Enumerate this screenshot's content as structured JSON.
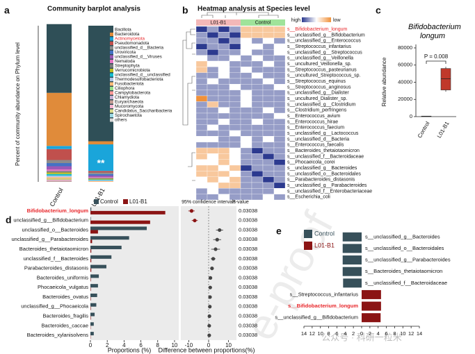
{
  "watermarks": [
    "e-proof",
    "公众号 · 科研一粒米"
  ],
  "chart_data": [
    {
      "type": "stacked_bar",
      "panel": "a",
      "title": "Community barplot analysis",
      "ylabel": "Percent of community abundance on Phylum level",
      "categories": [
        "Control",
        "L01-B1"
      ],
      "ylim": [
        0,
        100
      ],
      "annotation": "**",
      "highlight_series": 2,
      "highlight_color": "#e8262a",
      "series": [
        {
          "name": "Bacillota",
          "color": "#2f4f57",
          "values": [
            44,
            74
          ]
        },
        {
          "name": "Bacteroidota",
          "color": "#e08b3a",
          "values": [
            34,
            2
          ]
        },
        {
          "name": "Actinomycetota",
          "color": "#1aa5da",
          "values": [
            2,
            17
          ]
        },
        {
          "name": "Pseudomonadota",
          "color": "#c0504d",
          "values": [
            7,
            1
          ]
        },
        {
          "name": "unclassified_d__Bacteria",
          "color": "#8c8c8c",
          "values": [
            2,
            1
          ]
        },
        {
          "name": "Uroviricota",
          "color": "#4472c4",
          "values": [
            2,
            1
          ]
        },
        {
          "name": "unclassified_d__Viruses",
          "color": "#9b59b6",
          "values": [
            2,
            1
          ]
        },
        {
          "name": "Nematoda",
          "color": "#e377c2",
          "values": [
            1,
            0.5
          ]
        },
        {
          "name": "Streptophyta",
          "color": "#7f7f7f",
          "values": [
            1,
            0.5
          ]
        },
        {
          "name": "Verrucomicrobiota",
          "color": "#bcbd22",
          "values": [
            1,
            0.5
          ]
        },
        {
          "name": "unclassified_d__unclassified",
          "color": "#17becf",
          "values": [
            1,
            0.5
          ]
        },
        {
          "name": "Thermodesulfobacteriota",
          "color": "#aec7e8",
          "values": [
            1,
            0.5
          ]
        },
        {
          "name": "Fusobacteriota",
          "color": "#ffbb78",
          "values": [
            1,
            0.5
          ]
        },
        {
          "name": "Ciliophora",
          "color": "#98df8a",
          "values": [
            0.5,
            0
          ]
        },
        {
          "name": "Campylobacterota",
          "color": "#ff9896",
          "values": [
            0.5,
            0
          ]
        },
        {
          "name": "Chlamydiota",
          "color": "#c5b0d5",
          "values": [
            0.5,
            0
          ]
        },
        {
          "name": "Euryarchaeota",
          "color": "#c49c94",
          "values": [
            0.5,
            0
          ]
        },
        {
          "name": "Mucoromycota",
          "color": "#f7b6d2",
          "values": [
            0,
            0
          ]
        },
        {
          "name": "Candidatus_Saccharibacteria",
          "color": "#dbdb8d",
          "values": [
            0,
            0
          ]
        },
        {
          "name": "Spirochaetota",
          "color": "#9edae5",
          "values": [
            0,
            0
          ]
        },
        {
          "name": "others",
          "color": "#d9d9d9",
          "values": [
            0,
            0
          ]
        }
      ]
    },
    {
      "type": "heatmap",
      "panel": "b",
      "title": "Heatmap analysis at Species level",
      "legend_high": "high",
      "legend_low": "low",
      "clim": [
        -2,
        2
      ],
      "colors": {
        "high": "#2c3a8f",
        "mid": "#ffffff",
        "low": "#f0913a"
      },
      "groups": [
        {
          "name": "L01-B1",
          "color": "#f3b8b8"
        },
        {
          "name": "Control",
          "color": "#9fe39a"
        }
      ],
      "highlight_row": 0,
      "highlight_color": "#e8262a",
      "rows": [
        "s__Bifidobacterium_longum",
        "s__unclassified_g__Bifidobacterium",
        "s__unclassified_g__Enterococcus",
        "s__Streptococcus_infantarius",
        "s__unclassified_g__Streptococcus",
        "s__unclassified_g__Veillonella",
        "s__uncultured_Veillonella_sp.",
        "s__Streptococcus_pasteurianus",
        "s__uncultured_Streptococcus_sp.",
        "s__Streptococcus_equinus",
        "s__Streptococcus_anginosus",
        "s__unclassified_g__Dialister",
        "s__uncultured_Dialister_sp.",
        "s__unclassified_g__Clostridium",
        "s__Clostridium_perfringens",
        "s__Enterococcus_avium",
        "s__Enterococcus_hirae",
        "s__Enterococcus_faecium",
        "s__unclassified_g__Lactococcus",
        "s__unclassified_d__Bacteria",
        "s__Enterococcus_faecalis",
        "s__Bacteroides_thetaiotaomicron",
        "s__unclassified_f__Bacteroidaceae",
        "s__Phocaeicola_corei",
        "s__unclassified_g__Bacteroides",
        "s__unclassified_o__Bacteroidales",
        "s__Parabacteroides_distasonis",
        "s__unclassified_g__Parabacteroides",
        "s__unclassified_f__Enterobacteriaceae",
        "s__Escherichia_coli"
      ],
      "values": [
        [
          2,
          1,
          2,
          1,
          -1,
          -1,
          -1,
          -1
        ],
        [
          1,
          2,
          1,
          2,
          -1,
          -1,
          -1,
          -1
        ],
        [
          1,
          1,
          2,
          1,
          0,
          1,
          0,
          1
        ],
        [
          2,
          1,
          1,
          2,
          0,
          0,
          1,
          0
        ],
        [
          1,
          2,
          1,
          1,
          0,
          1,
          1,
          0
        ],
        [
          0,
          1,
          1,
          0,
          1,
          0,
          1,
          1
        ],
        [
          -1,
          0,
          0,
          1,
          1,
          1,
          0,
          1
        ],
        [
          -1,
          1,
          0,
          1,
          0,
          1,
          1,
          1
        ],
        [
          1,
          1,
          0,
          1,
          1,
          0,
          1,
          1
        ],
        [
          1,
          0,
          1,
          1,
          1,
          1,
          0,
          1
        ],
        [
          1,
          1,
          1,
          0,
          1,
          1,
          1,
          0
        ],
        [
          1,
          1,
          1,
          1,
          0,
          1,
          1,
          1
        ],
        [
          -2,
          1,
          1,
          1,
          0,
          1,
          1,
          1
        ],
        [
          1,
          -1,
          1,
          1,
          0,
          1,
          1,
          1
        ],
        [
          1,
          1,
          0,
          1,
          1,
          1,
          0,
          1
        ],
        [
          1,
          1,
          1,
          1,
          1,
          1,
          1,
          0
        ],
        [
          1,
          1,
          0,
          1,
          1,
          0,
          1,
          1
        ],
        [
          1,
          0,
          1,
          1,
          1,
          1,
          1,
          1
        ],
        [
          1,
          1,
          1,
          0,
          1,
          1,
          1,
          1
        ],
        [
          0,
          0,
          1,
          1,
          0,
          1,
          0,
          1
        ],
        [
          1,
          1,
          1,
          1,
          0,
          1,
          1,
          1
        ],
        [
          -1,
          -1,
          -1,
          0,
          1,
          2,
          1,
          1
        ],
        [
          -1,
          0,
          -1,
          0,
          1,
          1,
          2,
          1
        ],
        [
          0,
          0,
          -1,
          0,
          1,
          1,
          1,
          2
        ],
        [
          -1,
          -1,
          0,
          -1,
          2,
          1,
          1,
          1
        ],
        [
          -1,
          -1,
          -1,
          0,
          1,
          2,
          1,
          1
        ],
        [
          0,
          -1,
          0,
          -1,
          1,
          1,
          2,
          1
        ],
        [
          0,
          0,
          -1,
          -1,
          1,
          1,
          1,
          2
        ],
        [
          1,
          0,
          1,
          1,
          1,
          1,
          1,
          0
        ],
        [
          1,
          1,
          0,
          1,
          1,
          1,
          0,
          1
        ]
      ]
    },
    {
      "type": "box",
      "panel": "c",
      "title": "Bifidobacterium longum",
      "ylabel": "Relative abundance",
      "categories": [
        "Control",
        "L01-B1"
      ],
      "colors": [
        "#444444",
        "#c0392b"
      ],
      "ylim": [
        0,
        80000
      ],
      "yticks": [
        0,
        20000,
        40000,
        60000,
        80000
      ],
      "annotation": "P = 0.008",
      "boxes": [
        {
          "min": 0,
          "q1": 200,
          "median": 400,
          "q3": 600,
          "max": 800
        },
        {
          "min": 29000,
          "q1": 31000,
          "median": 44000,
          "q3": 56000,
          "max": 58000
        }
      ]
    },
    {
      "type": "ci_bar",
      "panel": "d",
      "highlight_category": 0,
      "highlight_color": "#e8262a",
      "categories": [
        "Bifidobacterium_longum",
        "unclassified_g__Bifidobacterium",
        "unclassified_o__Bacteroides",
        "unclassified_g__Parabacteroides",
        "Bacteroides_thetaiotaomicron",
        "unclassified_f__Bacteroides",
        "Parabacteroides_distasonis",
        "Bacteroides_uniformis",
        "Phocaeicola_vulgatus",
        "Bacteroides_ovatus",
        "unclassified_g__Phocaeicola",
        "Bacteroides_fragilis",
        "Bacteroides_caccae",
        "Bacteroides_xylanisolvens"
      ],
      "series": [
        {
          "name": "Control",
          "color": "#37505a",
          "values": [
            0.1,
            0.05,
            6.7,
            4.6,
            3.7,
            2.5,
            1.9,
            1.0,
            0.9,
            0.8,
            0.7,
            0.5,
            0.4,
            0.4
          ]
        },
        {
          "name": "L01-B1",
          "color": "#8b1414",
          "values": [
            8.9,
            7.1,
            0.9,
            0.2,
            0.1,
            0.1,
            0.1,
            0.05,
            0.05,
            0.05,
            0.05,
            0.05,
            0.03,
            0.03
          ]
        }
      ],
      "xlabel": "Proportions (%)",
      "xlim": [
        0,
        10.5
      ],
      "xticks": [
        0,
        2,
        4,
        6,
        8,
        10
      ],
      "ci_title": "95% confidence intervals",
      "diff_label": "Difference between proportions(%)",
      "diff": [
        -8.6,
        -7.0,
        5.5,
        4.3,
        3.5,
        2.3,
        1.7,
        0.9,
        0.8,
        0.7,
        0.6,
        0.4,
        0.3,
        0.3
      ],
      "diff_errors": [
        1.6,
        1.5,
        1.8,
        2.0,
        2.2,
        1.2,
        0.9,
        0.5,
        0.5,
        0.5,
        0.4,
        0.3,
        0.3,
        0.3
      ],
      "diff_xlim": [
        -14,
        14
      ],
      "diff_xticks": [
        -10,
        0,
        10
      ],
      "pvalue_title": "P-value",
      "pvalues": [
        0.03038,
        0.03038,
        0.03038,
        0.03038,
        0.03038,
        0.03038,
        0.03038,
        0.03038,
        0.03038,
        0.03038,
        0.03038,
        0.03038,
        0.03038,
        0.03038
      ]
    },
    {
      "type": "lda",
      "panel": "e",
      "highlight_category": 6,
      "highlight_color": "#e8262a",
      "categories": [
        "s__unclassified_g__Bacteroides",
        "s__unclassified_o__Bacteroidales",
        "s__unclassified_g__Parabacteroides",
        "s__Bacteroides_thetaiotaomicron",
        "s__unclassified_f__Bacteroidaceae",
        "s__Streptococcus_infantarius",
        "s__Bifidobacterium_longum",
        "s__unclassified_g__Bifidobacterium"
      ],
      "series": [
        {
          "name": "Control",
          "color": "#37505a",
          "values": [
            -4.6,
            -4.6,
            -4.6,
            -4.6,
            -4.5,
            null,
            null,
            null
          ]
        },
        {
          "name": "L01-B1",
          "color": "#8b1414",
          "values": [
            null,
            null,
            null,
            null,
            null,
            4.7,
            4.7,
            4.6
          ]
        }
      ],
      "xlim": [
        -14,
        14
      ],
      "xticks": [
        {
          "value": -14,
          "label": "14"
        },
        {
          "value": -12,
          "label": "12"
        },
        {
          "value": -10,
          "label": "10"
        },
        {
          "value": -8,
          "label": "8"
        },
        {
          "value": -6,
          "label": "6"
        },
        {
          "value": -4,
          "label": "4"
        },
        {
          "value": -2,
          "label": "2"
        },
        0,
        2,
        4,
        6,
        8,
        10,
        12,
        14
      ]
    }
  ]
}
